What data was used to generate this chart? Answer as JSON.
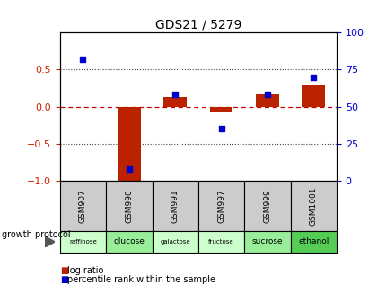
{
  "title": "GDS21 / 5279",
  "samples": [
    "GSM907",
    "GSM990",
    "GSM991",
    "GSM997",
    "GSM999",
    "GSM1001"
  ],
  "protocols": [
    "raffinose",
    "glucose",
    "galactose",
    "fructose",
    "sucrose",
    "ethanol"
  ],
  "protocol_colors": [
    "#ccffcc",
    "#99ee99",
    "#ccffcc",
    "#ccffcc",
    "#99ee99",
    "#55cc55"
  ],
  "log_ratio": [
    0.0,
    -1.02,
    0.13,
    -0.08,
    0.17,
    0.28
  ],
  "percentile_rank": [
    82,
    8,
    58,
    35,
    58,
    70
  ],
  "bar_color": "#bb2200",
  "dot_color": "#0000cc",
  "ylim_left": [
    -1.0,
    1.0
  ],
  "ylim_right": [
    0,
    100
  ],
  "yticks_left": [
    -1,
    -0.5,
    0,
    0.5
  ],
  "yticks_right": [
    0,
    25,
    50,
    75,
    100
  ],
  "hline_zero_color": "#cc0000",
  "hline_dotted_color": "#444444",
  "bar_width": 0.5,
  "legend_log_ratio": "log ratio",
  "legend_percentile": "percentile rank within the sample",
  "growth_protocol_label": "growth protocol",
  "left_label_color": "#cc2200",
  "right_label_color": "#0000cc",
  "title_fontsize": 10,
  "tick_fontsize": 8,
  "sample_fontsize": 6.5,
  "proto_fontsize": 6.5
}
